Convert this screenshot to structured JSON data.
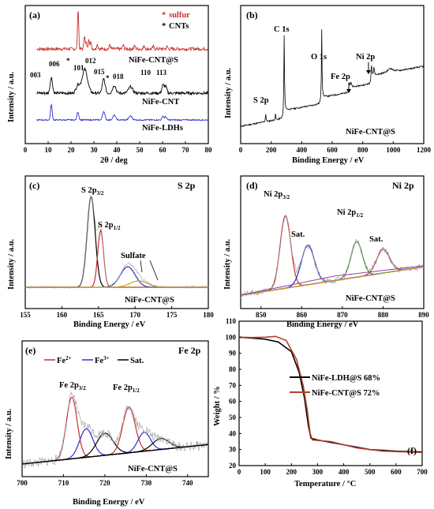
{
  "figure": {
    "x_axis_label_energy": "Binding Energy / eV",
    "y_axis_label_intensity": "Intensity / a.u."
  },
  "colors": {
    "black": "#000000",
    "red_sulfur": "#c8302c",
    "blue_ldh": "#2a2fd0",
    "green": "#2a8a2a",
    "olive": "#c8a020",
    "purple": "#8a2aa0",
    "grey_raw": "#9a9a9a",
    "brown_red": "#b0402a"
  },
  "chart_data": [
    {
      "panel": "(a)",
      "type": "line",
      "xlabel": "2θ / deg",
      "ylabel": "Intensity / a.u.",
      "xlim": [
        0,
        80
      ],
      "xticks": [
        "0",
        "10",
        "20",
        "30",
        "40",
        "50",
        "60",
        "70",
        "80"
      ],
      "legend": [
        {
          "marker": "*",
          "label": "sulfur",
          "color": "#c8302c"
        },
        {
          "marker": "*",
          "label": "CNTs",
          "color": "#000000"
        }
      ],
      "series": [
        {
          "name": "NiFe-CNT@S",
          "color": "#c8302c",
          "peaks_2theta": [
            23.1,
            25.9,
            27.8,
            28.7
          ]
        },
        {
          "name": "NiFe-CNT",
          "color": "#000000",
          "peaks_2theta": [
            11.4,
            23.0,
            26.0,
            34.3,
            38.9,
            46.0,
            60.2,
            61.4
          ]
        },
        {
          "name": "NiFe-LDHs",
          "color": "#2a2fd0",
          "peaks_2theta": [
            11.4,
            23.0,
            34.3,
            38.9,
            46.0,
            60.2,
            61.4
          ]
        }
      ],
      "peak_labels": [
        "003",
        "006",
        "*",
        "101",
        "012",
        "015",
        "018",
        "110",
        "113"
      ]
    },
    {
      "panel": "(b)",
      "type": "line",
      "xlabel": "Binding Energy / eV",
      "ylabel": "Intensity / a.u.",
      "xlim": [
        0,
        1200
      ],
      "xticks": [
        "0",
        "200",
        "400",
        "600",
        "800",
        "1000",
        "1200"
      ],
      "series_label": "NiFe-CNT@S",
      "peaks": [
        {
          "label": "S 2p",
          "x": 164
        },
        {
          "label": "C 1s",
          "x": 285
        },
        {
          "label": "O 1s",
          "x": 531
        },
        {
          "label": "Fe 2p",
          "x": 711
        },
        {
          "label": "Ni 2p",
          "x": 856
        }
      ]
    },
    {
      "panel": "(c)",
      "type": "line",
      "title": "S 2p",
      "xlabel": "Binding Energy / eV",
      "ylabel": "Intensity / a.u.",
      "xlim": [
        155,
        180
      ],
      "xticks": [
        "155",
        "160",
        "165",
        "170",
        "175",
        "180"
      ],
      "series_label": "NiFe-CNT@S",
      "components": [
        {
          "label": "S 2p3/2",
          "center": 164.0,
          "color": "#000000"
        },
        {
          "label": "S 2p1/2",
          "center": 165.3,
          "color": "#c8302c"
        },
        {
          "label": "Sulfate",
          "center": 169.0,
          "color": "#2a2fd0"
        }
      ]
    },
    {
      "panel": "(d)",
      "type": "line",
      "title": "Ni 2p",
      "xlabel": "Binding Energy / eV",
      "ylabel": "Intensity / a.u.",
      "xlim": [
        845,
        890
      ],
      "xticks": [
        "850",
        "860",
        "870",
        "880",
        "890"
      ],
      "series_label": "NiFe-CNT@S",
      "components": [
        {
          "label": "Ni 2p3/2",
          "center": 856.0,
          "color": "#c8302c"
        },
        {
          "label": "Sat.",
          "center": 861.5,
          "color": "#2a2fd0"
        },
        {
          "label": "Ni 2p1/2",
          "center": 873.5,
          "color": "#2a8a2a"
        },
        {
          "label": "Sat.",
          "center": 880.0,
          "color": "#b0402a"
        }
      ]
    },
    {
      "panel": "(e)",
      "type": "line",
      "title": "Fe 2p",
      "xlabel": "Binding Energy / eV",
      "ylabel": "Intensity / a.u.",
      "xlim": [
        700,
        745
      ],
      "xticks": [
        "700",
        "710",
        "720",
        "730",
        "740"
      ],
      "series_label": "NiFe-CNT@S",
      "legend": [
        "Fe2+",
        "Fe3+",
        "Sat."
      ],
      "components": [
        {
          "label": "Fe 2p3/2",
          "center": 712.0,
          "color": "#c8302c"
        },
        {
          "label": "Fe3+",
          "center": 715.5,
          "color": "#2a2fd0"
        },
        {
          "label": "Sat.",
          "center": 720.0,
          "color": "#000000"
        },
        {
          "label": "Fe 2p1/2",
          "center": 725.8,
          "color": "#c8302c"
        },
        {
          "label": "Fe3+",
          "center": 729.5,
          "color": "#2a2fd0"
        },
        {
          "label": "Sat.",
          "center": 733.5,
          "color": "#000000"
        }
      ]
    },
    {
      "panel": "(f)",
      "type": "line",
      "xlabel": "Temperature / °C",
      "ylabel": "Weight / %",
      "xlim": [
        0,
        700
      ],
      "ylim": [
        20,
        110
      ],
      "xticks": [
        "0",
        "100",
        "200",
        "300",
        "400",
        "500",
        "600",
        "700"
      ],
      "yticks": [
        "20",
        "30",
        "40",
        "50",
        "60",
        "70",
        "80",
        "90",
        "100",
        "110"
      ],
      "series": [
        {
          "name": "NiFe-LDH@S 68%",
          "color": "#000000",
          "points": [
            [
              0,
              100
            ],
            [
              50,
              99.5
            ],
            [
              100,
              98.8
            ],
            [
              150,
              97
            ],
            [
              200,
              91
            ],
            [
              230,
              78
            ],
            [
              250,
              62
            ],
            [
              265,
              45
            ],
            [
              275,
              37
            ],
            [
              300,
              36
            ],
            [
              400,
              33
            ],
            [
              500,
              30
            ],
            [
              600,
              29
            ],
            [
              700,
              28.5
            ]
          ]
        },
        {
          "name": "NiFe-CNT@S 72%",
          "color": "#b0402a",
          "points": [
            [
              0,
              100
            ],
            [
              50,
              99.8
            ],
            [
              100,
              100
            ],
            [
              140,
              100.5
            ],
            [
              180,
              98
            ],
            [
              220,
              86
            ],
            [
              245,
              70
            ],
            [
              260,
              55
            ],
            [
              272,
              40
            ],
            [
              280,
              36
            ],
            [
              350,
              35
            ],
            [
              450,
              31
            ],
            [
              550,
              29
            ],
            [
              700,
              28.2
            ]
          ]
        }
      ]
    }
  ],
  "text": {
    "a_label": "(a)",
    "b_label": "(b)",
    "c_label": "(c)",
    "d_label": "(d)",
    "e_label": "(e)",
    "f_label": "(f)",
    "a_legend_sulfur": "sulfur",
    "a_legend_cnts": "CNTs",
    "a_s1": "NiFe-CNT@S",
    "a_s2": "NiFe-CNT",
    "a_s3": "NiFe-LDHs",
    "a_xlabel": "2θ / deg",
    "a_ylabel": "Intensity / a.u.",
    "b_s": "NiFe-CNT@S",
    "b_c1s": "C 1s",
    "b_o1s": "O 1s",
    "b_ni2p": "Ni 2p",
    "b_fe2p": "Fe 2p",
    "b_s2p": "S 2p",
    "c_title": "S 2p",
    "c_s": "NiFe-CNT@S",
    "c_sulfate": "Sulfate",
    "d_title": "Ni 2p",
    "d_s": "NiFe-CNT@S",
    "d_sat1": "Sat.",
    "d_sat2": "Sat.",
    "e_title": "Fe 2p",
    "e_s": "NiFe-CNT@S",
    "e_sat": "Sat.",
    "f_xlabel": "Temperature / °C",
    "f_ylabel": "Weight / %",
    "f_leg1": "NiFe-LDH@S 68%",
    "f_leg2": "NiFe-CNT@S 72%"
  }
}
